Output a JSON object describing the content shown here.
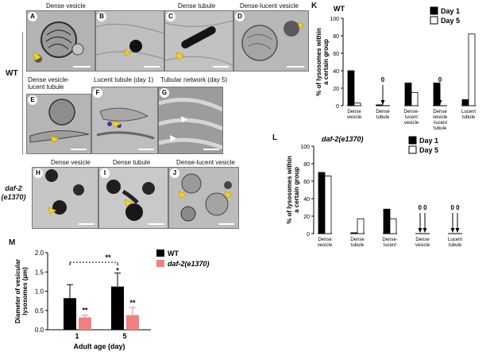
{
  "panels": {
    "A": {
      "letter": "A",
      "title": "Dense vesicle"
    },
    "B": {
      "letter": "B",
      "title": ""
    },
    "C": {
      "letter": "C",
      "title": "Dense tubule"
    },
    "D": {
      "letter": "D",
      "title": "Dense-lucent vesicle"
    },
    "E": {
      "letter": "E",
      "title": "Dense vesicle-lucent tubule"
    },
    "F": {
      "letter": "F",
      "title": "Lucent tubule (day 1)"
    },
    "G": {
      "letter": "G",
      "title": "Tubular network (day 5)"
    },
    "H": {
      "letter": "H",
      "title": "Dense vesicle"
    },
    "I": {
      "letter": "I",
      "title": "Dense tubule"
    },
    "J": {
      "letter": "J",
      "title": "Dense-lucent vesicle"
    }
  },
  "side_labels": {
    "wt": "WT",
    "mutant": "daf-2\n(e1370)"
  },
  "chart_data": [
    {
      "panel": "K",
      "type": "bar",
      "title": "WT",
      "ylabel": "% of lysosomes within a certain group",
      "ylim": [
        0,
        100
      ],
      "yticks": [
        0,
        20,
        40,
        60,
        80,
        100
      ],
      "categories": [
        "Dense vesicle",
        "Dense tubule",
        "Dense- lucent vesicle",
        "Dense vesicle -lucent tubule",
        "Lucent tubule"
      ],
      "series": [
        {
          "name": "Day 1",
          "color": "#000000",
          "values": [
            40,
            1,
            26,
            26,
            7
          ]
        },
        {
          "name": "Day 5",
          "color": "#ffffff",
          "values": [
            3,
            0,
            15,
            0,
            82
          ]
        }
      ],
      "zero_annotations": [
        {
          "category_index": 1,
          "label": "0"
        },
        {
          "category_index": 3,
          "label": "0"
        }
      ],
      "legend": "top-right"
    },
    {
      "panel": "L",
      "type": "bar",
      "title": "daf-2(e1370)",
      "ylabel": "% of lysosomes within a certain group",
      "ylim": [
        0,
        100
      ],
      "yticks": [
        0,
        20,
        40,
        60,
        80,
        100
      ],
      "categories": [
        "Dense vesicle",
        "Dense tubule",
        "Dense- lucent vesicle",
        "Dense vesicle -lucent tubule",
        "Lucent tubule"
      ],
      "series": [
        {
          "name": "Day 1",
          "color": "#000000",
          "values": [
            70,
            1,
            28,
            0,
            0
          ]
        },
        {
          "name": "Day 5",
          "color": "#ffffff",
          "values": [
            66,
            17,
            17,
            0,
            0
          ]
        }
      ],
      "zero_annotations": [
        {
          "category_index": 3,
          "label": "0 0"
        },
        {
          "category_index": 4,
          "label": "0 0"
        }
      ],
      "legend": "top-right"
    },
    {
      "panel": "M",
      "type": "bar",
      "ylabel": "Diameter of vesicular lysosomes (µm)",
      "xlabel": "Adult age (day)",
      "ylim": [
        0,
        2.0
      ],
      "yticks": [
        "0.0",
        "0.5",
        "1.0",
        "1.5",
        "2.0"
      ],
      "categories": [
        "1",
        "5"
      ],
      "series": [
        {
          "name": "WT",
          "color": "#000000",
          "values": [
            0.82,
            1.12
          ],
          "errors": [
            0.35,
            0.35
          ]
        },
        {
          "name": "daf-2(e1370)",
          "color": "#f08080",
          "values": [
            0.32,
            0.38
          ],
          "errors": [
            0.06,
            0.2
          ]
        }
      ],
      "significance": [
        {
          "label": "**",
          "target": "daf-2 day 1"
        },
        {
          "label": "*",
          "target": "WT day 5"
        },
        {
          "label": "**",
          "target": "daf-2 day 5"
        },
        {
          "label": "**",
          "target": "WT day 1 vs day 5"
        }
      ],
      "legend": "top-right"
    }
  ],
  "chart_labels": {
    "K": "K",
    "L": "L",
    "M": "M"
  }
}
